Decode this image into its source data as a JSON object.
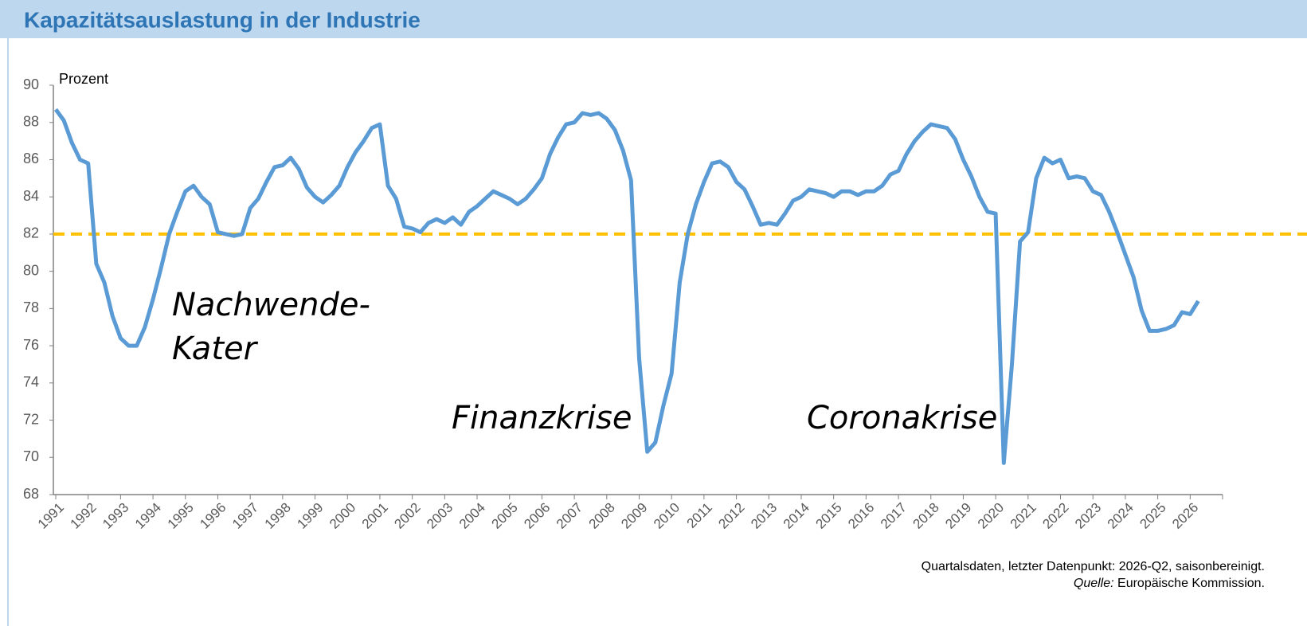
{
  "chart_data": {
    "type": "line",
    "title": "Kapazitätsauslastung in der Industrie",
    "y_axis_label": "Prozent",
    "annotations": [
      "Nachwende-",
      "Kater",
      "Finanzkrise",
      "Coronakrise"
    ],
    "footnote": "Quartalsdaten, letzter Datenpunkt: 2026-Q2, saisonbereinigt.",
    "source_label": "Quelle:",
    "source": "Europäische Kommission.",
    "categories": [
      "1991",
      null,
      null,
      null,
      "1992",
      null,
      null,
      null,
      "1993",
      null,
      null,
      null,
      "1994",
      null,
      null,
      null,
      "1995",
      null,
      null,
      null,
      "1996",
      null,
      null,
      null,
      "1997",
      null,
      null,
      null,
      "1998",
      null,
      null,
      null,
      "1999",
      null,
      null,
      null,
      "2000",
      null,
      null,
      null,
      "2001",
      null,
      null,
      null,
      "2002",
      null,
      null,
      null,
      "2003",
      null,
      null,
      null,
      "2004",
      null,
      null,
      null,
      "2005",
      null,
      null,
      null,
      "2006",
      null,
      null,
      null,
      "2007",
      null,
      null,
      null,
      "2008",
      null,
      null,
      null,
      "2009",
      null,
      null,
      null,
      "2010",
      null,
      null,
      null,
      "2011",
      null,
      null,
      null,
      "2012",
      null,
      null,
      null,
      "2013",
      null,
      null,
      null,
      "2014",
      null,
      null,
      null,
      "2015",
      null,
      null,
      null,
      "2016",
      null,
      null,
      null,
      "2017",
      null,
      null,
      null,
      "2018",
      null,
      null,
      null,
      "2019",
      null,
      null,
      null,
      "2020",
      null,
      null,
      null,
      "2021",
      null,
      null,
      null,
      "2022",
      null,
      null,
      null,
      "2023",
      null,
      null,
      null,
      "2024",
      null,
      null,
      null,
      "2025",
      null,
      null,
      null,
      "2026",
      null
    ],
    "series": [
      {
        "name": "Kapazitätsauslastung",
        "color": "#5b9bd5",
        "values": [
          88.7,
          88.1,
          86.9,
          86.0,
          85.8,
          80.4,
          79.4,
          77.6,
          76.4,
          76.0,
          76.0,
          77.0,
          78.5,
          80.2,
          82.0,
          83.2,
          84.3,
          84.6,
          84.0,
          83.6,
          82.1,
          82.0,
          81.9,
          82.0,
          83.4,
          83.9,
          84.8,
          85.6,
          85.7,
          86.1,
          85.5,
          84.5,
          84.0,
          83.7,
          84.1,
          84.6,
          85.6,
          86.4,
          87.0,
          87.7,
          87.9,
          84.6,
          83.9,
          82.4,
          82.3,
          82.1,
          82.6,
          82.8,
          82.6,
          82.9,
          82.5,
          83.2,
          83.5,
          83.9,
          84.3,
          84.1,
          83.9,
          83.6,
          83.9,
          84.4,
          85.0,
          86.3,
          87.2,
          87.9,
          88.0,
          88.5,
          88.4,
          88.5,
          88.2,
          87.6,
          86.5,
          84.9,
          75.3,
          70.3,
          70.8,
          72.8,
          74.5,
          79.4,
          82.0,
          83.6,
          84.8,
          85.8,
          85.9,
          85.6,
          84.8,
          84.4,
          83.5,
          82.5,
          82.6,
          82.5,
          83.1,
          83.8,
          84.0,
          84.4,
          84.3,
          84.2,
          84.0,
          84.3,
          84.3,
          84.1,
          84.3,
          84.3,
          84.6,
          85.2,
          85.4,
          86.3,
          87.0,
          87.5,
          87.9,
          87.8,
          87.7,
          87.1,
          86.0,
          85.1,
          84.0,
          83.2,
          83.1,
          69.7,
          75.0,
          81.6,
          82.1,
          85.0,
          86.1,
          85.8,
          86.0,
          85.0,
          85.1,
          85.0,
          84.3,
          84.1,
          83.2,
          82.1,
          80.9,
          79.7,
          77.9,
          76.8,
          76.8,
          76.9,
          77.1,
          77.8,
          77.7,
          78.4
        ]
      }
    ],
    "reference_line": {
      "value": 82,
      "color": "#ffc000"
    },
    "ylim": [
      68,
      90
    ],
    "yticks": [
      68,
      70,
      72,
      74,
      76,
      78,
      80,
      82,
      84,
      86,
      88,
      90
    ],
    "grid": false
  }
}
